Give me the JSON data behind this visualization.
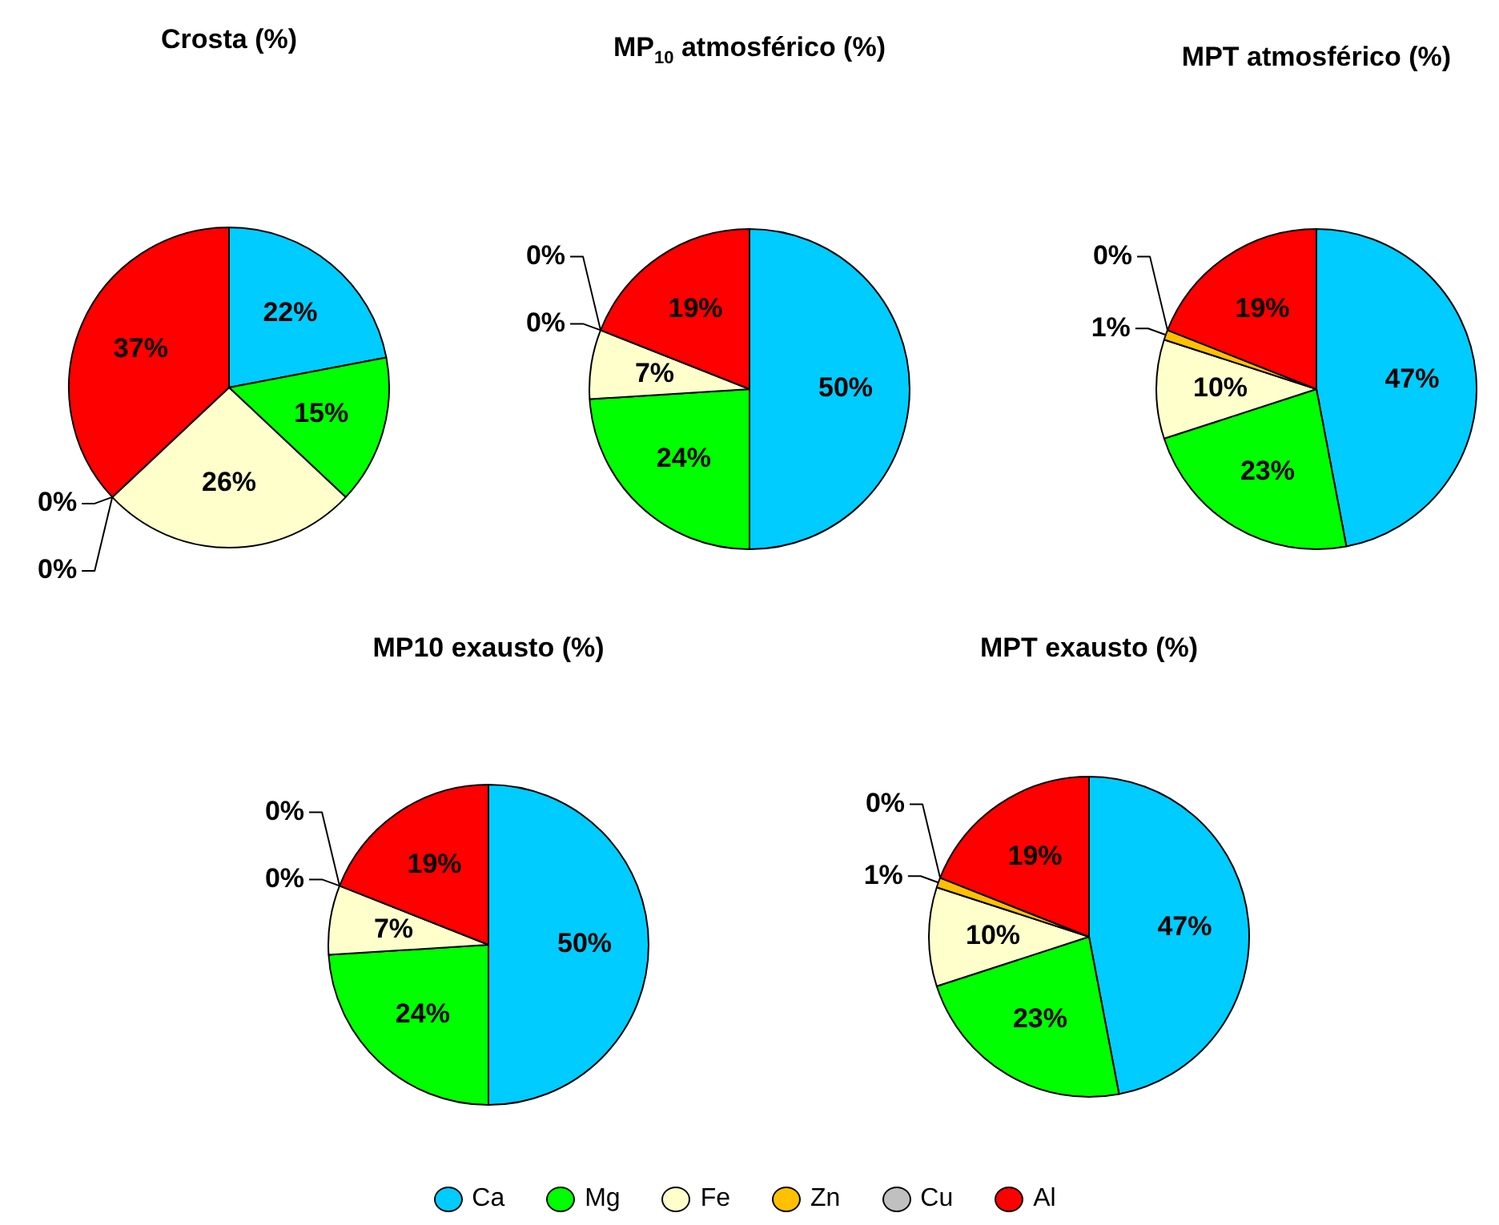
{
  "chart_data": [
    {
      "type": "pie",
      "title": "Crosta (%)",
      "categories": [
        "Ca",
        "Mg",
        "Fe",
        "Zn",
        "Cu",
        "Al"
      ],
      "values": [
        22,
        15,
        26,
        0,
        0,
        37
      ],
      "colors": [
        "#00ccff",
        "#00ff00",
        "#ffffcc",
        "#ffc000",
        "#c0c0c0",
        "#ff0000"
      ],
      "value_labels": [
        "22%",
        "15%",
        "26%",
        "0%",
        "0%",
        "37%"
      ],
      "legend": "bottom"
    },
    {
      "type": "pie",
      "title": "MP$_{10}$ atmosférico (%)",
      "categories": [
        null,
        null,
        null,
        null,
        null,
        null
      ],
      "values": [
        50,
        24,
        7,
        0,
        0,
        19
      ],
      "colors": [
        "#00ccff",
        "#00ff00",
        "#ffffcc",
        "#ffc000",
        "#c0c0c0",
        "#ff0000"
      ],
      "value_labels": [
        "50%",
        "24%",
        "7%",
        "0%",
        "0%",
        "19%"
      ]
    },
    {
      "type": "pie",
      "title": "MPT atmosférico (%)",
      "categories": [
        null,
        null,
        null,
        null,
        null,
        null
      ],
      "values": [
        47,
        23,
        10,
        1,
        0,
        19
      ],
      "colors": [
        "#00ccff",
        "#00ff00",
        "#ffffcc",
        "#ffc000",
        "#c0c0c0",
        "#ff0000"
      ],
      "value_labels": [
        "47%",
        "23%",
        "10%",
        "1%",
        "0%",
        "19%"
      ]
    },
    {
      "type": "pie",
      "title": "MP10 exausto (%)",
      "categories": [
        null,
        null,
        null,
        null,
        null,
        null
      ],
      "values": [
        50,
        24,
        7,
        0,
        0,
        19
      ],
      "colors": [
        "#00ccff",
        "#00ff00",
        "#ffffcc",
        "#ffc000",
        "#c0c0c0",
        "#ff0000"
      ],
      "value_labels": [
        "50%",
        "24%",
        "7%",
        "0%",
        "0%",
        "19%"
      ]
    },
    {
      "type": "pie",
      "title": "MPT exausto (%)",
      "categories": [
        null,
        null,
        null,
        null,
        null,
        null
      ],
      "values": [
        47,
        23,
        10,
        1,
        0,
        19
      ],
      "colors": [
        "#00ccff",
        "#00ff00",
        "#ffffcc",
        "#ffc000",
        "#c0c0c0",
        "#ff0000"
      ],
      "value_labels": [
        "47%",
        "23%",
        "10%",
        "1%",
        "0%",
        "19%"
      ]
    }
  ]
}
